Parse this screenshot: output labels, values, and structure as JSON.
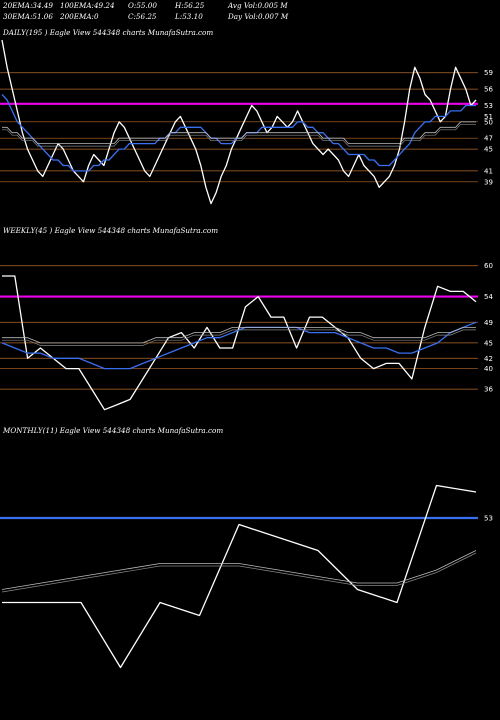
{
  "header": {
    "row1": [
      {
        "label": "20EMA:",
        "value": "34.49"
      },
      {
        "label": "100EMA:",
        "value": "49.24"
      },
      {
        "label": "O:",
        "value": "55.00"
      },
      {
        "label": "H:",
        "value": "56.25"
      },
      {
        "label": "Avg Vol:",
        "value": "0.005 M"
      }
    ],
    "row2": [
      {
        "label": "30EMA:",
        "value": "51.06"
      },
      {
        "label": "200EMA:",
        "value": "0"
      },
      {
        "label": "C:",
        "value": "56.25"
      },
      {
        "label": "L:",
        "value": "53.10"
      },
      {
        "label": "Day Vol:",
        "value": "0.007 M"
      }
    ]
  },
  "panel_titles": {
    "daily": "DAILY(195             ) Eagle  View  544348  charts MunafaSutra.com",
    "weekly": "WEEKLY(45                    ) Eagle  View  544348  charts MunafaSutra.com",
    "monthly": "MONTHLY(11) Eagle  View  544348  charts MunafaSutra.com"
  },
  "colors": {
    "price": "#ffffff",
    "ema_fast": "#3a6ff0",
    "ema_slow": "#bbbbbb",
    "level_brown": "#b56b2d",
    "level_magenta": "#ee00ee",
    "level_blue": "#3a6ff0"
  },
  "chart_data": [
    {
      "type": "line",
      "panel": "daily",
      "ylim": [
        32,
        65
      ],
      "y_ticks": [
        "59",
        "56",
        "53",
        "51",
        "50",
        "47",
        "45",
        "41",
        "39"
      ],
      "levels": [
        {
          "value": 59,
          "color": "brown"
        },
        {
          "value": 56,
          "color": "brown"
        },
        {
          "value": 53.3,
          "color": "magenta"
        },
        {
          "value": 50,
          "color": "brown"
        },
        {
          "value": 47,
          "color": "brown"
        },
        {
          "value": 45,
          "color": "brown"
        },
        {
          "value": 41,
          "color": "brown"
        },
        {
          "value": 39,
          "color": "brown"
        }
      ],
      "series": [
        {
          "role": "price",
          "values": [
            65,
            60,
            56,
            52,
            48,
            45,
            43,
            41,
            40,
            42,
            44,
            46,
            45,
            43,
            41,
            40,
            39,
            42,
            44,
            43,
            42,
            45,
            48,
            50,
            49,
            47,
            45,
            43,
            41,
            40,
            42,
            44,
            46,
            48,
            50,
            51,
            49,
            47,
            45,
            42,
            38,
            35,
            37,
            40,
            42,
            45,
            47,
            49,
            51,
            53,
            52,
            50,
            48,
            49,
            51,
            50,
            49,
            50,
            52,
            50,
            48,
            46,
            45,
            44,
            45,
            44,
            43,
            41,
            40,
            42,
            44,
            42,
            41,
            40,
            38,
            39,
            40,
            42,
            45,
            50,
            56,
            60,
            58,
            55,
            54,
            52,
            50,
            51,
            56,
            60,
            58,
            56,
            53,
            54
          ]
        },
        {
          "role": "ema_fast",
          "values": [
            55,
            54,
            52,
            50,
            49,
            48,
            47,
            46,
            45,
            44,
            43,
            43,
            42,
            42,
            41,
            41,
            41,
            41,
            42,
            42,
            43,
            43,
            44,
            45,
            45,
            46,
            46,
            46,
            46,
            46,
            46,
            47,
            47,
            48,
            48,
            49,
            49,
            49,
            49,
            49,
            48,
            47,
            47,
            46,
            46,
            46,
            47,
            47,
            48,
            48,
            48,
            49,
            49,
            49,
            49,
            49,
            49,
            49,
            50,
            50,
            49,
            49,
            48,
            48,
            47,
            46,
            46,
            45,
            44,
            44,
            44,
            44,
            43,
            43,
            42,
            42,
            42,
            43,
            44,
            45,
            46,
            48,
            49,
            50,
            50,
            51,
            51,
            51,
            52,
            52,
            52,
            53,
            53,
            53
          ]
        },
        {
          "role": "ema_slow",
          "values": [
            49,
            49,
            48,
            48,
            47,
            47,
            47,
            46,
            46,
            46,
            46,
            46,
            46,
            46,
            46,
            46,
            46,
            46,
            46,
            46,
            46,
            46,
            46,
            47,
            47,
            47,
            47,
            47,
            47,
            47,
            47,
            47,
            47,
            48,
            48,
            48,
            48,
            48,
            48,
            48,
            48,
            47,
            47,
            47,
            47,
            47,
            47,
            47,
            48,
            48,
            48,
            48,
            48,
            48,
            48,
            48,
            48,
            48,
            48,
            48,
            48,
            48,
            48,
            47,
            47,
            47,
            47,
            47,
            46,
            46,
            46,
            46,
            46,
            46,
            46,
            46,
            46,
            46,
            46,
            47,
            47,
            47,
            47,
            48,
            48,
            48,
            49,
            49,
            49,
            49,
            50,
            50,
            50,
            50
          ]
        }
      ]
    },
    {
      "type": "line",
      "panel": "weekly",
      "ylim": [
        30,
        65
      ],
      "y_ticks": [
        "60",
        "54",
        "49",
        "45",
        "42",
        "40",
        "36"
      ],
      "levels": [
        {
          "value": 60,
          "color": "brown"
        },
        {
          "value": 54,
          "color": "magenta"
        },
        {
          "value": 49,
          "color": "brown"
        },
        {
          "value": 45,
          "color": "brown"
        },
        {
          "value": 42,
          "color": "brown"
        },
        {
          "value": 40,
          "color": "brown"
        },
        {
          "value": 36,
          "color": "brown"
        }
      ],
      "series": [
        {
          "role": "price",
          "values": [
            58,
            58,
            42,
            44,
            42,
            40,
            40,
            36,
            32,
            33,
            34,
            38,
            42,
            46,
            47,
            44,
            48,
            44,
            44,
            52,
            54,
            50,
            50,
            44,
            50,
            50,
            48,
            46,
            42,
            40,
            41,
            41,
            38,
            48,
            56,
            55,
            55,
            53
          ]
        },
        {
          "role": "ema_fast",
          "values": [
            45,
            44,
            43,
            43,
            42,
            42,
            42,
            41,
            40,
            40,
            40,
            41,
            42,
            43,
            44,
            45,
            46,
            46,
            47,
            48,
            48,
            48,
            48,
            48,
            47,
            47,
            47,
            46,
            45,
            44,
            44,
            43,
            43,
            44,
            45,
            47,
            48,
            49
          ]
        },
        {
          "role": "ema_slow",
          "values": [
            46,
            46,
            46,
            45,
            45,
            45,
            45,
            45,
            45,
            45,
            45,
            45,
            46,
            46,
            46,
            47,
            47,
            47,
            48,
            48,
            48,
            48,
            48,
            48,
            48,
            48,
            48,
            47,
            47,
            46,
            46,
            46,
            46,
            46,
            47,
            47,
            48,
            48
          ]
        }
      ]
    },
    {
      "type": "line",
      "panel": "monthly",
      "ylim": [
        25,
        65
      ],
      "y_ticks": [
        "53"
      ],
      "levels": [
        {
          "value": 53,
          "color": "blue"
        }
      ],
      "series": [
        {
          "role": "price",
          "values": [
            40,
            40,
            40,
            30,
            40,
            38,
            52,
            50,
            48,
            42,
            40,
            58,
            57
          ]
        },
        {
          "role": "ema_slow",
          "values": [
            42,
            43,
            44,
            45,
            46,
            46,
            46,
            45,
            44,
            43,
            43,
            45,
            48
          ]
        }
      ]
    }
  ]
}
